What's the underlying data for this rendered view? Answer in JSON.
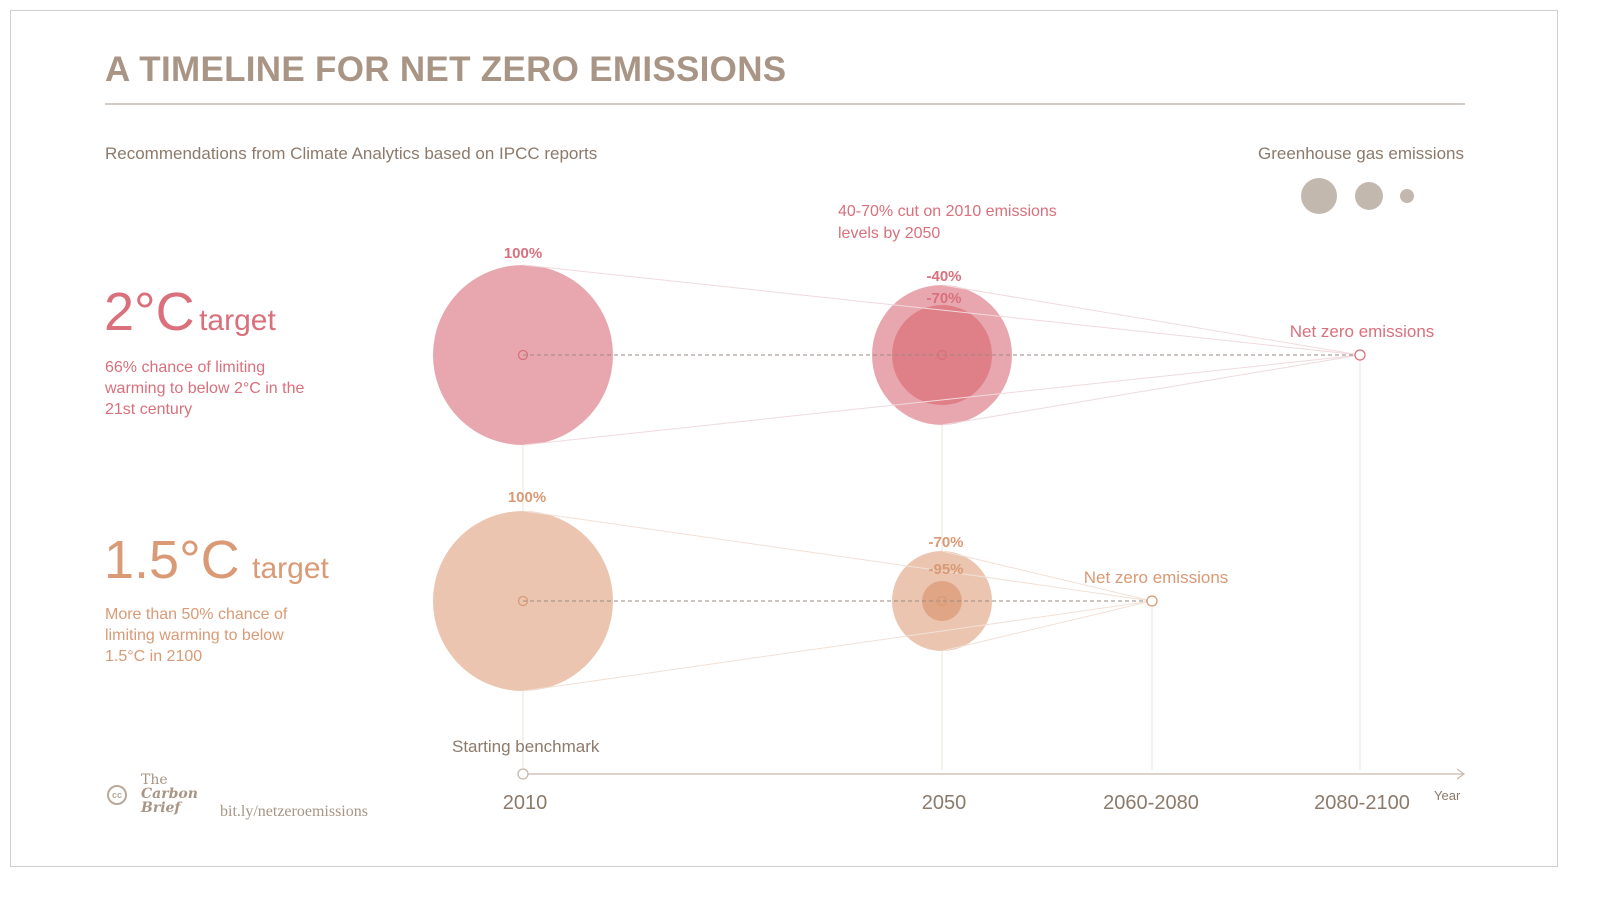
{
  "title": "A TIMELINE FOR NET ZERO EMISSIONS",
  "subtitle": "Recommendations from Climate Analytics based on IPCC reports",
  "legend": {
    "title": "Greenhouse gas emissions",
    "color": "#c3b8ae"
  },
  "colors": {
    "two_c": "#e8a7ae",
    "two_c_inner": "#df7f87",
    "one5_c": "#ebc5b0",
    "one5_c_inner": "#dfa585",
    "axis": "#c9b8aa",
    "text": "#8c7a6b"
  },
  "targets": {
    "two_c": {
      "big": "2°C",
      "word": "target",
      "description": "66% chance of limiting warming to below 2°C in the 21st century",
      "start_label": "100%",
      "cut_high": "-40%",
      "cut_low": "-70%",
      "net_zero_label": "Net zero emissions",
      "cut_note": "40-70% cut on 2010 emissions levels by 2050"
    },
    "one5_c": {
      "big": "1.5°C",
      "word": "target",
      "description": "More than 50% chance of limiting warming to below 1.5°C in 2100",
      "start_label": "100%",
      "cut_high": "-70%",
      "cut_low": "-95%",
      "net_zero_label": "Net zero emissions"
    }
  },
  "axis": {
    "benchmark_label": "Starting benchmark",
    "years": [
      "2010",
      "2050",
      "2060-2080",
      "2080-2100"
    ],
    "unit_label": "Year"
  },
  "source": {
    "brand": [
      "The",
      "Carbon",
      "Brief"
    ],
    "url": "bit.ly/netzeroemissions",
    "license_icon": "cc"
  }
}
